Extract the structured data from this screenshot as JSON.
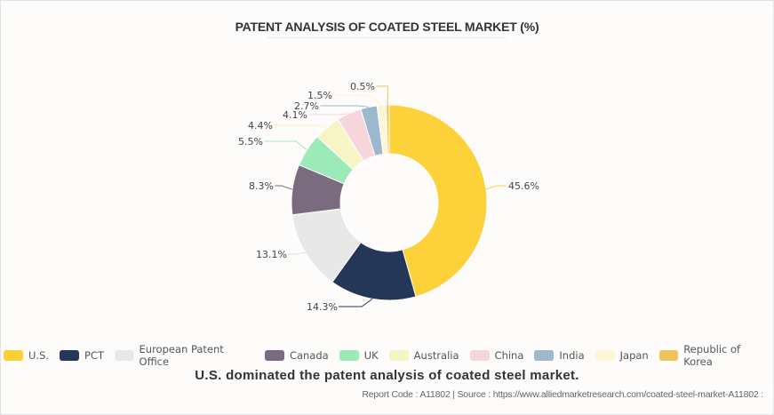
{
  "chart_data": {
    "type": "pie",
    "variant": "donut",
    "title": "PATENT ANALYSIS OF COATED STEEL MARKET (%)",
    "start_angle": "top",
    "direction": "clockwise",
    "slices": [
      {
        "name": "U.S.",
        "value": 45.6,
        "label": "45.6%",
        "color": "#fdd13a"
      },
      {
        "name": "PCT",
        "value": 14.3,
        "label": "14.3%",
        "color": "#253758"
      },
      {
        "name": "European Patent Office",
        "value": 13.1,
        "label": "13.1%",
        "color": "#e8e8e8"
      },
      {
        "name": "Canada",
        "value": 8.3,
        "label": "8.3%",
        "color": "#7b6b7f"
      },
      {
        "name": "UK",
        "value": 5.5,
        "label": "5.5%",
        "color": "#9deab9"
      },
      {
        "name": "Australia",
        "value": 4.4,
        "label": "4.4%",
        "color": "#f6f5c5"
      },
      {
        "name": "China",
        "value": 4.1,
        "label": "4.1%",
        "color": "#f6d6da"
      },
      {
        "name": "India",
        "value": 2.7,
        "label": "2.7%",
        "color": "#9cb8cd"
      },
      {
        "name": "Japan",
        "value": 1.5,
        "label": "1.5%",
        "color": "#fdf5d3"
      },
      {
        "name": "Republic of Korea",
        "value": 0.5,
        "label": "0.5%",
        "color": "#ecc55a"
      }
    ],
    "legend_position": "bottom"
  },
  "caption": "U.S. dominated the patent analysis of coated steel market.",
  "source": "Report Code : A11802  |  Source : https://www.alliedmarketresearch.com/coated-steel-market-A11802 :"
}
